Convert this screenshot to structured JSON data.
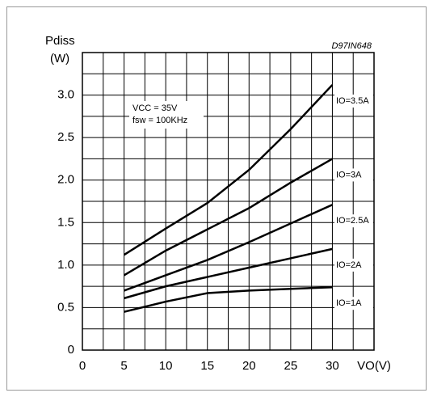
{
  "chart_data": {
    "type": "line",
    "y_label": "Pdiss",
    "y_unit": "(W)",
    "x_label": "VO(V)",
    "figure_code": "D97IN648",
    "annotations": [
      "VCC = 35V",
      "fsw = 100KHz"
    ],
    "x": [
      5,
      10,
      15,
      20,
      25,
      30
    ],
    "series": [
      {
        "name": "IO=3.5A",
        "color": "#000000",
        "values": [
          1.12,
          1.43,
          1.73,
          2.12,
          2.6,
          3.12
        ]
      },
      {
        "name": "IO=3A",
        "color": "#000000",
        "values": [
          0.88,
          1.17,
          1.42,
          1.67,
          1.97,
          2.25
        ]
      },
      {
        "name": "IO=2.5A",
        "color": "#000000",
        "values": [
          0.7,
          0.88,
          1.06,
          1.27,
          1.49,
          1.71
        ]
      },
      {
        "name": "IO=2A",
        "color": "#000000",
        "values": [
          0.61,
          0.75,
          0.86,
          0.97,
          1.08,
          1.19
        ]
      },
      {
        "name": "IO=1A",
        "color": "#000000",
        "values": [
          0.45,
          0.57,
          0.67,
          0.7,
          0.72,
          0.74
        ]
      }
    ],
    "xlim": [
      0,
      35
    ],
    "ylim": [
      0,
      3.5
    ],
    "xticks": [
      0,
      5,
      10,
      15,
      20,
      25,
      30
    ],
    "yticks": [
      0,
      0.5,
      {
        "value": 1,
        "label": "1.0"
      },
      1.5,
      {
        "value": 2,
        "label": "2.0"
      },
      2.5,
      {
        "value": 3,
        "label": "3.0"
      }
    ],
    "x_grid": [
      2.5,
      5,
      7.5,
      10,
      12.5,
      15,
      17.5,
      20,
      22.5,
      25,
      27.5,
      30,
      32.5
    ],
    "y_grid": [
      0.25,
      0.5,
      0.75,
      1,
      1.25,
      1.5,
      1.75,
      2,
      2.25,
      2.5,
      2.75,
      3,
      3.25
    ],
    "grid": true
  }
}
